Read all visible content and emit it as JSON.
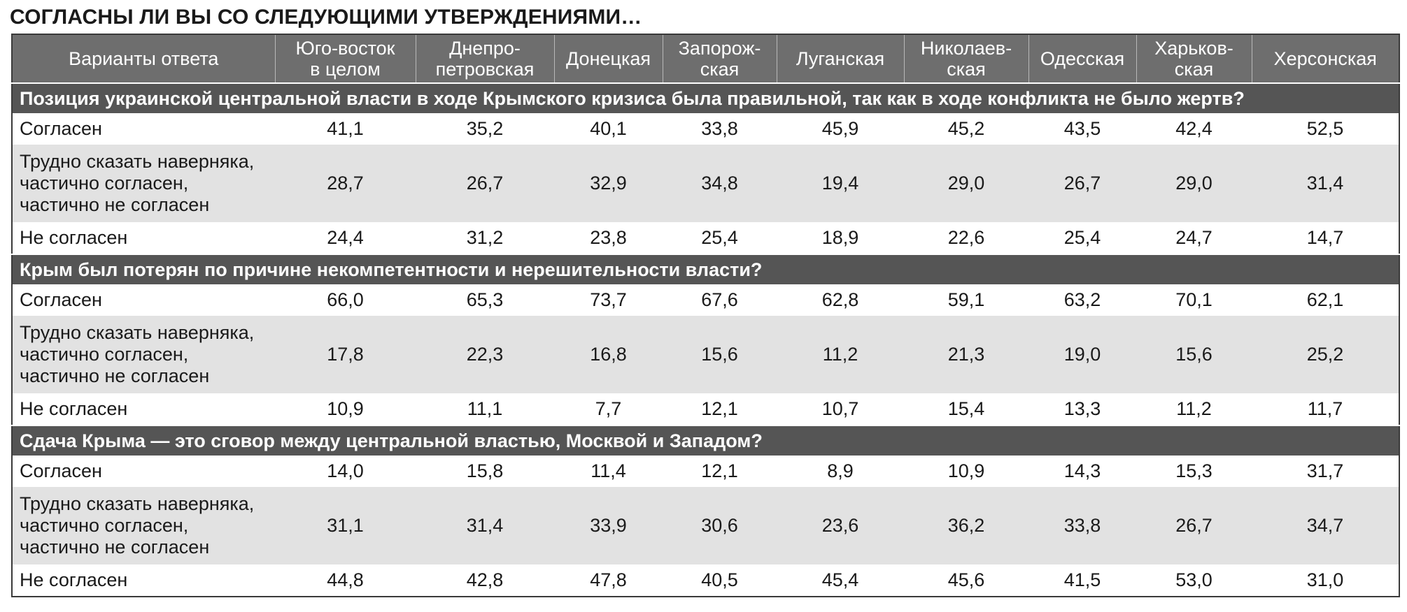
{
  "title": "СОГЛАСНЫ ЛИ ВЫ СО СЛЕДУЮЩИМИ УТВЕРЖДЕНИЯМИ…",
  "header": {
    "first": "Варианты ответа",
    "columns": [
      [
        "Юго-восток",
        "в целом"
      ],
      [
        "Днепро-",
        "петровская"
      ],
      [
        "Донецкая"
      ],
      [
        "Запорож-",
        "ская"
      ],
      [
        "Луганская"
      ],
      [
        "Николаев-",
        "ская"
      ],
      [
        "Одесская"
      ],
      [
        "Харьков-",
        "ская"
      ],
      [
        "Херсонская"
      ]
    ]
  },
  "answers": {
    "agree": [
      "Согласен"
    ],
    "unsure": [
      "Трудно сказать наверняка,",
      "частично согласен,",
      "частично не согласен"
    ],
    "disagree": [
      "Не согласен"
    ]
  },
  "sections": [
    {
      "question": "Позиция украинской центральной власти в ходе Крымского кризиса была правильной, так как в ходе конфликта не было жертв?",
      "rows": [
        {
          "answer": "agree",
          "values": [
            "41,1",
            "35,2",
            "40,1",
            "33,8",
            "45,9",
            "45,2",
            "43,5",
            "42,4",
            "52,5"
          ]
        },
        {
          "answer": "unsure",
          "values": [
            "28,7",
            "26,7",
            "32,9",
            "34,8",
            "19,4",
            "29,0",
            "26,7",
            "29,0",
            "31,4"
          ]
        },
        {
          "answer": "disagree",
          "values": [
            "24,4",
            "31,2",
            "23,8",
            "25,4",
            "18,9",
            "22,6",
            "25,4",
            "24,7",
            "14,7"
          ]
        }
      ]
    },
    {
      "question": "Крым был потерян по причине некомпетентности и нерешительности власти?",
      "rows": [
        {
          "answer": "agree",
          "values": [
            "66,0",
            "65,3",
            "73,7",
            "67,6",
            "62,8",
            "59,1",
            "63,2",
            "70,1",
            "62,1"
          ]
        },
        {
          "answer": "unsure",
          "values": [
            "17,8",
            "22,3",
            "16,8",
            "15,6",
            "11,2",
            "21,3",
            "19,0",
            "15,6",
            "25,2"
          ]
        },
        {
          "answer": "disagree",
          "values": [
            "10,9",
            "11,1",
            "7,7",
            "12,1",
            "10,7",
            "15,4",
            "13,3",
            "11,2",
            "11,7"
          ]
        }
      ]
    },
    {
      "question": "Сдача Крыма — это сговор между центральной властью, Москвой и Западом?",
      "rows": [
        {
          "answer": "agree",
          "values": [
            "14,0",
            "15,8",
            "11,4",
            "12,1",
            "8,9",
            "10,9",
            "14,3",
            "15,3",
            "31,7"
          ]
        },
        {
          "answer": "unsure",
          "values": [
            "31,1",
            "31,4",
            "33,9",
            "30,6",
            "23,6",
            "36,2",
            "33,8",
            "26,7",
            "34,7"
          ]
        },
        {
          "answer": "disagree",
          "values": [
            "44,8",
            "42,8",
            "47,8",
            "40,5",
            "45,4",
            "45,6",
            "41,5",
            "53,0",
            "31,0"
          ]
        }
      ]
    }
  ]
}
